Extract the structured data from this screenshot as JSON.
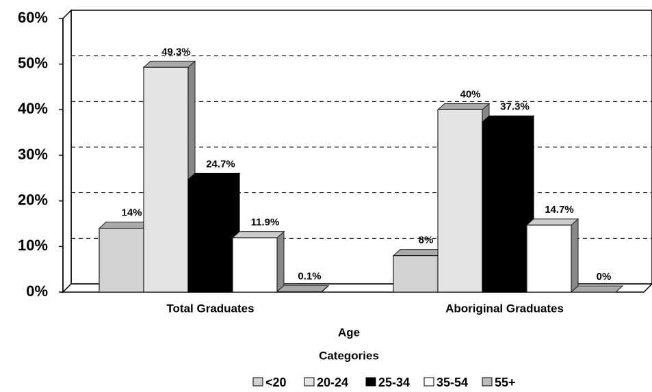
{
  "chart_data": {
    "type": "bar3d",
    "categories": [
      "Total Graduates",
      "Aboriginal Graduates"
    ],
    "x_label": [
      "Age",
      "Categories"
    ],
    "series": [
      {
        "name": "<20",
        "color": "#d2d2d2",
        "values": [
          14,
          8
        ],
        "value_labels": [
          "14%",
          "8%"
        ]
      },
      {
        "name": "20-24",
        "color": "#e4e4e4",
        "values": [
          49.3,
          40
        ],
        "value_labels": [
          "49.3%",
          "40%"
        ]
      },
      {
        "name": "25-34",
        "color": "#000000",
        "values": [
          24.7,
          37.3
        ],
        "value_labels": [
          "24.7%",
          "37.3%"
        ]
      },
      {
        "name": "35-54",
        "color": "#ffffff",
        "values": [
          11.9,
          14.7
        ],
        "value_labels": [
          "11.9%",
          "14.7%"
        ]
      },
      {
        "name": "55+",
        "color": "#bdbdbd",
        "values": [
          0.1,
          0
        ],
        "value_labels": [
          "0.1%",
          "0%"
        ]
      }
    ],
    "ylim": [
      0,
      60
    ],
    "yticks": [
      {
        "value": 0,
        "label": "0%"
      },
      {
        "value": 10,
        "label": "10%"
      },
      {
        "value": 20,
        "label": "20%"
      },
      {
        "value": 30,
        "label": "30%"
      },
      {
        "value": 40,
        "label": "40%"
      },
      {
        "value": 50,
        "label": "50%"
      },
      {
        "value": 60,
        "label": "60%"
      }
    ],
    "grid": true
  }
}
